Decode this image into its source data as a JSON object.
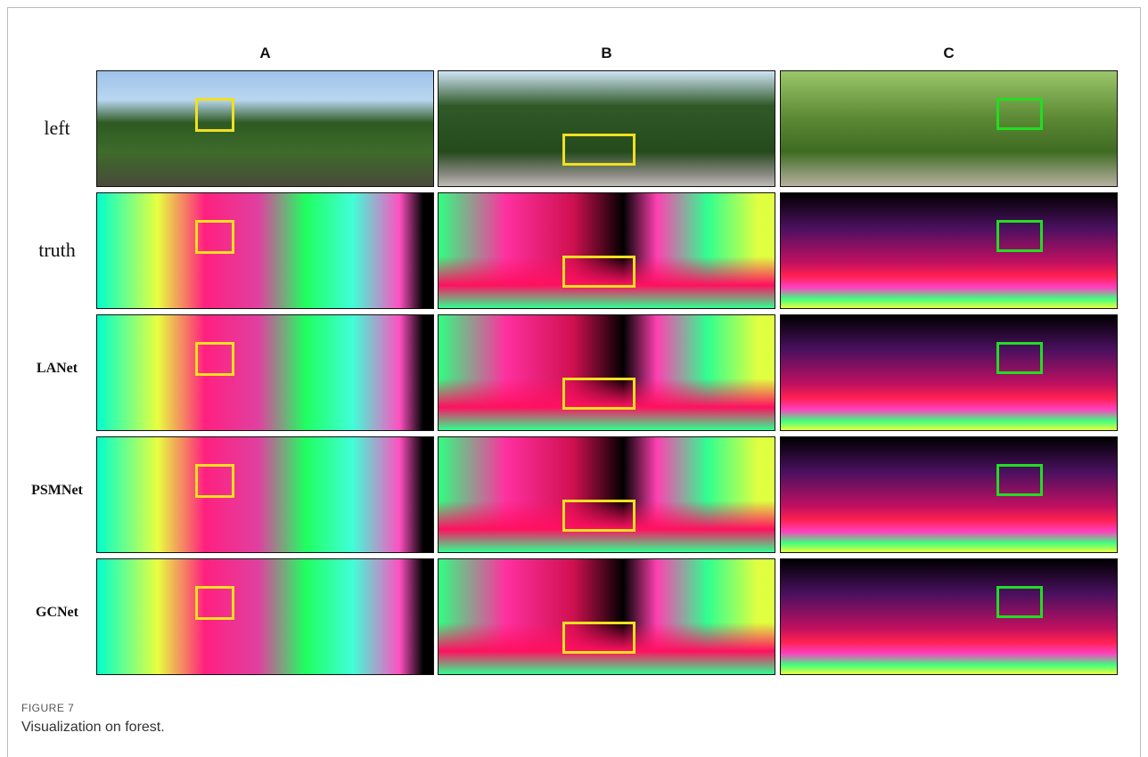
{
  "figure": {
    "columns": [
      "A",
      "B",
      "C"
    ],
    "rows": [
      "left",
      "truth",
      "LANet",
      "PSMNet",
      "GCNet"
    ]
  },
  "caption": {
    "label": "FIGURE 7",
    "text": "Visualization on forest."
  }
}
